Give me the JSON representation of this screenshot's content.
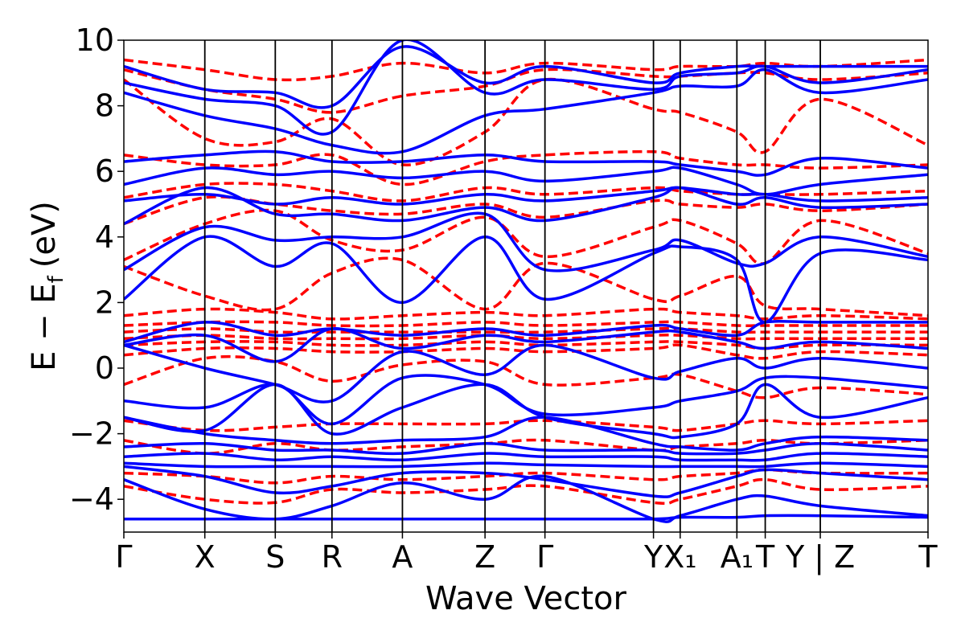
{
  "chart_data": {
    "type": "line",
    "title": "",
    "xlabel": "Wave Vector",
    "ylabel": "E − E_f (eV)",
    "ylabel_parts": {
      "main": "E − E",
      "sub": "f",
      "unit": "(eV)"
    },
    "ylim": [
      -5,
      10
    ],
    "yticks": [
      "10",
      "8",
      "6",
      "4",
      "2",
      "0",
      "−2",
      "−4"
    ],
    "ytick_values": [
      10,
      8,
      6,
      4,
      2,
      0,
      -2,
      -4
    ],
    "grid": false,
    "legend": "none",
    "kpath": {
      "labels": [
        {
          "text": "Γ",
          "k": 0.0
        },
        {
          "text": "X",
          "k": 1.0
        },
        {
          "text": "S",
          "k": 1.87
        },
        {
          "text": "R",
          "k": 2.57
        },
        {
          "text": "A",
          "k": 3.44
        },
        {
          "text": "Z",
          "k": 4.46
        },
        {
          "text": "Γ",
          "k": 5.2
        },
        {
          "text": "Y",
          "k": 6.54
        },
        {
          "text": "X₁",
          "k": 6.87
        },
        {
          "text": "A₁",
          "k": 7.57
        },
        {
          "text": "T",
          "k": 7.92
        },
        {
          "text": "Y | Z",
          "k": 8.6
        },
        {
          "text": "T",
          "k": 9.93
        }
      ],
      "k_max": 9.93
    },
    "series": [
      {
        "style": "solid",
        "color": "#0000ff",
        "bands": [
          [
            -4.6,
            -4.6,
            -4.6,
            -4.6,
            -4.6,
            -4.6,
            -4.6,
            -4.6,
            -4.55,
            -4.55,
            -4.5,
            -4.5,
            -4.55
          ],
          [
            -3.4,
            -4.3,
            -4.6,
            -4.2,
            -3.5,
            -4.0,
            -3.3,
            -4.6,
            -4.5,
            -4.0,
            -3.9,
            -4.2,
            -4.5
          ],
          [
            -3.0,
            -3.3,
            -3.8,
            -3.6,
            -3.2,
            -3.2,
            -3.4,
            -3.9,
            -3.8,
            -3.3,
            -3.1,
            -3.2,
            -3.4
          ],
          [
            -2.9,
            -3.0,
            -3.0,
            -3.0,
            -3.0,
            -2.9,
            -2.95,
            -3.0,
            -3.0,
            -3.0,
            -3.0,
            -2.9,
            -3.0
          ],
          [
            -2.7,
            -2.6,
            -2.8,
            -2.7,
            -2.8,
            -2.6,
            -2.7,
            -2.7,
            -2.8,
            -2.8,
            -2.8,
            -2.6,
            -2.7
          ],
          [
            -2.4,
            -2.3,
            -2.5,
            -2.5,
            -2.6,
            -2.3,
            -2.5,
            -2.5,
            -2.6,
            -2.6,
            -2.5,
            -2.3,
            -2.5
          ],
          [
            -1.5,
            -2.0,
            -2.2,
            -2.3,
            -2.2,
            -2.1,
            -1.5,
            -2.3,
            -2.4,
            -2.5,
            -2.3,
            -2.1,
            -2.2
          ],
          [
            -1.5,
            -1.9,
            -0.5,
            -2.0,
            -1.2,
            -0.5,
            -1.5,
            -2.0,
            -2.1,
            -1.7,
            -0.5,
            -1.5,
            -0.9
          ],
          [
            -1.0,
            -1.2,
            -0.5,
            -1.7,
            -0.3,
            -0.5,
            -1.4,
            -1.2,
            -1.0,
            -0.7,
            -0.3,
            -0.3,
            -0.6
          ],
          [
            0.7,
            0.0,
            -0.5,
            -1.0,
            0.5,
            -0.2,
            0.7,
            -0.3,
            -0.1,
            0.3,
            0.0,
            0.3,
            0.0
          ],
          [
            0.7,
            1.0,
            0.2,
            1.2,
            0.6,
            1.0,
            0.8,
            1.1,
            1.1,
            0.8,
            0.6,
            0.8,
            0.6
          ],
          [
            0.8,
            1.4,
            1.0,
            1.2,
            1.0,
            1.2,
            1.0,
            1.3,
            1.2,
            1.0,
            1.4,
            1.4,
            1.4
          ],
          [
            2.1,
            4.0,
            3.1,
            3.8,
            2.0,
            4.0,
            2.1,
            3.5,
            3.7,
            3.3,
            1.4,
            3.5,
            3.3
          ],
          [
            3.0,
            4.3,
            3.9,
            4.0,
            4.0,
            4.7,
            3.0,
            3.6,
            3.9,
            3.2,
            3.2,
            4.0,
            3.4
          ],
          [
            4.4,
            5.5,
            4.7,
            4.7,
            4.5,
            4.9,
            4.5,
            5.2,
            5.5,
            5.0,
            5.2,
            4.9,
            5.0
          ],
          [
            5.1,
            5.3,
            5.0,
            5.2,
            5.0,
            5.3,
            5.1,
            5.4,
            5.5,
            5.3,
            5.3,
            5.1,
            5.2
          ],
          [
            5.6,
            6.1,
            5.9,
            6.0,
            5.8,
            6.0,
            5.7,
            6.0,
            6.1,
            5.6,
            5.3,
            5.6,
            5.9
          ],
          [
            6.3,
            6.5,
            6.6,
            6.3,
            6.3,
            6.5,
            6.3,
            6.3,
            6.2,
            6.0,
            5.9,
            6.4,
            6.1
          ],
          [
            8.4,
            7.7,
            7.3,
            6.8,
            6.6,
            7.7,
            7.9,
            8.4,
            8.6,
            8.6,
            9.1,
            8.4,
            8.8
          ],
          [
            8.7,
            8.2,
            8.0,
            7.2,
            10.0,
            8.4,
            8.8,
            8.5,
            8.9,
            9.0,
            9.2,
            8.7,
            9.1
          ],
          [
            9.2,
            8.5,
            8.4,
            8.0,
            9.8,
            8.7,
            9.2,
            8.7,
            9.0,
            9.2,
            9.2,
            9.2,
            9.2
          ]
        ]
      },
      {
        "style": "dashed",
        "color": "#ff0000",
        "bands": [
          [
            -3.6,
            -4.0,
            -4.1,
            -3.7,
            -3.8,
            -3.7,
            -3.6,
            -4.1,
            -4.0,
            -3.6,
            -3.4,
            -3.7,
            -3.6
          ],
          [
            -3.2,
            -3.3,
            -3.5,
            -3.3,
            -3.4,
            -3.3,
            -3.2,
            -3.4,
            -3.3,
            -3.2,
            -3.1,
            -3.2,
            -3.2
          ],
          [
            -2.2,
            -2.6,
            -2.3,
            -2.5,
            -2.4,
            -2.3,
            -2.2,
            -2.5,
            -2.4,
            -2.3,
            -2.2,
            -2.3,
            -2.2
          ],
          [
            -1.6,
            -1.9,
            -1.8,
            -1.7,
            -1.7,
            -1.7,
            -1.6,
            -1.8,
            -1.9,
            -1.7,
            -1.6,
            -1.7,
            -1.6
          ],
          [
            -0.5,
            0.3,
            0.2,
            -0.4,
            0.1,
            0.2,
            -0.5,
            -0.3,
            -0.2,
            -0.7,
            -0.9,
            -0.6,
            -0.8
          ],
          [
            0.4,
            0.6,
            0.6,
            0.5,
            0.5,
            0.6,
            0.5,
            0.6,
            0.7,
            0.4,
            0.3,
            0.5,
            0.4
          ],
          [
            0.7,
            0.8,
            0.8,
            0.7,
            0.7,
            0.8,
            0.7,
            0.8,
            0.8,
            0.7,
            0.6,
            0.7,
            0.7
          ],
          [
            0.9,
            1.0,
            0.9,
            0.9,
            0.9,
            1.0,
            0.9,
            1.0,
            1.0,
            0.9,
            0.9,
            0.9,
            0.9
          ],
          [
            1.1,
            1.2,
            1.1,
            1.1,
            1.1,
            1.1,
            1.1,
            1.2,
            1.2,
            1.1,
            1.1,
            1.1,
            1.1
          ],
          [
            1.3,
            1.4,
            1.4,
            1.3,
            1.3,
            1.4,
            1.3,
            1.4,
            1.4,
            1.3,
            1.3,
            1.3,
            1.3
          ],
          [
            1.6,
            1.8,
            1.7,
            1.5,
            1.6,
            1.7,
            1.6,
            1.8,
            1.7,
            1.6,
            1.5,
            1.6,
            1.5
          ],
          [
            3.1,
            2.2,
            1.8,
            2.9,
            3.3,
            1.8,
            3.2,
            2.1,
            2.2,
            2.8,
            1.9,
            1.8,
            1.6
          ],
          [
            3.3,
            4.4,
            4.8,
            3.9,
            3.6,
            4.6,
            3.4,
            4.3,
            4.5,
            3.8,
            3.2,
            4.5,
            3.5
          ],
          [
            4.4,
            5.2,
            5.0,
            4.8,
            4.7,
            5.0,
            4.6,
            5.1,
            5.0,
            4.9,
            5.0,
            4.8,
            5.0
          ],
          [
            5.2,
            5.6,
            5.6,
            5.4,
            5.1,
            5.5,
            5.3,
            5.5,
            5.4,
            5.3,
            5.3,
            5.3,
            5.4
          ],
          [
            6.5,
            6.2,
            6.2,
            6.5,
            5.6,
            6.3,
            6.5,
            6.6,
            6.4,
            6.2,
            6.2,
            6.1,
            6.2
          ],
          [
            8.8,
            7.0,
            6.9,
            7.6,
            6.2,
            7.2,
            8.8,
            7.9,
            7.8,
            7.2,
            6.6,
            8.2,
            6.8
          ],
          [
            9.1,
            8.5,
            8.2,
            7.8,
            8.3,
            8.6,
            9.1,
            8.9,
            8.9,
            9.0,
            9.0,
            8.8,
            9.0
          ],
          [
            9.4,
            9.1,
            8.8,
            8.9,
            9.3,
            9.0,
            9.3,
            9.1,
            9.2,
            9.2,
            9.3,
            9.2,
            9.4
          ]
        ]
      }
    ]
  }
}
